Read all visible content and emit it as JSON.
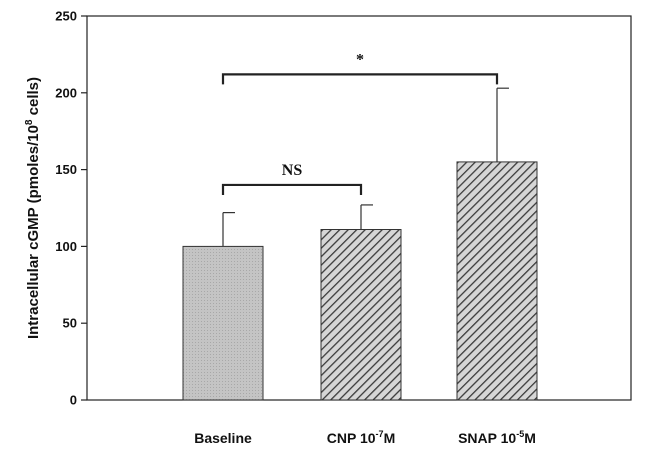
{
  "chart_data": {
    "type": "bar",
    "categories": [
      "Baseline",
      "CNP 10",
      "SNAP 10"
    ],
    "category_labels": [
      {
        "main": "Baseline",
        "sup": "",
        "tail": ""
      },
      {
        "main": "CNP 10",
        "sup": "-7",
        "tail": "M"
      },
      {
        "main": "SNAP 10",
        "sup": "-5",
        "tail": "M"
      }
    ],
    "values": [
      100,
      111,
      155
    ],
    "errors": [
      22,
      16,
      48
    ],
    "fills": [
      "dotted-gray",
      "hatched",
      "hatched"
    ],
    "ylabel": {
      "main": "Intracellular cGMP (pmoles/10",
      "sup": "8",
      "tail": " cells)"
    },
    "ylim": [
      0,
      250
    ],
    "yticks": [
      0,
      50,
      100,
      150,
      200,
      250
    ],
    "grid": false,
    "annotations": [
      {
        "label": "NS",
        "from": 0,
        "to": 1,
        "level": 140
      },
      {
        "label": "*",
        "from": 0,
        "to": 2,
        "level": 212
      }
    ],
    "colors": {
      "baseline_fill": "#c4c4c4",
      "hatch_bg": "#d6d6d6",
      "hatch_line": "#3a3a3a",
      "axis": "#222222"
    }
  }
}
